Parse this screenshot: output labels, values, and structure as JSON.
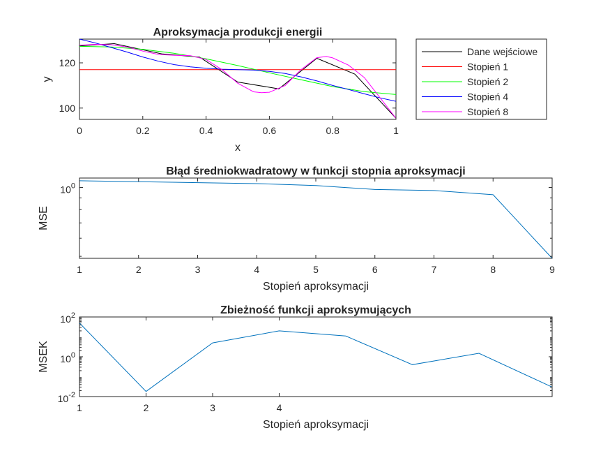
{
  "chart_data": [
    {
      "type": "line",
      "title": "Aproksymacja produkcji energii",
      "xlabel": "x",
      "ylabel": "y",
      "xlim": [
        0,
        1
      ],
      "ylim": [
        95,
        130.5
      ],
      "xticks": [
        0,
        0.2,
        0.4,
        0.6,
        0.8,
        1
      ],
      "xtick_labels": [
        "0",
        "0.2",
        "0.4",
        "0.6",
        "0.8",
        "1"
      ],
      "yticks": [
        100,
        120
      ],
      "ytick_labels": [
        "100",
        "120"
      ],
      "legend_position": "outside-right",
      "series": [
        {
          "name": "Dane wejściowe",
          "color": "#000000",
          "x": [
            0,
            0.11,
            0.26,
            0.38,
            0.5,
            0.63,
            0.75,
            0.87,
            1.0
          ],
          "y": [
            127.5,
            128.5,
            124.0,
            122.5,
            111.5,
            108.5,
            122.0,
            115.0,
            95.5
          ]
        },
        {
          "name": "Stopień 1",
          "color": "#ff0000",
          "x": [
            0,
            1
          ],
          "y": [
            117.0,
            117.0
          ]
        },
        {
          "name": "Stopień 2",
          "color": "#00ff00",
          "x": [
            0,
            0.1,
            0.2,
            0.3,
            0.4,
            0.5,
            0.6,
            0.7,
            0.8,
            0.9,
            1.0
          ],
          "y": [
            127.3,
            127.0,
            126.0,
            124.2,
            121.8,
            118.8,
            115.6,
            112.5,
            109.5,
            107.3,
            106.0
          ]
        },
        {
          "name": "Stopień 4",
          "color": "#0000ff",
          "x": [
            0,
            0.05,
            0.1,
            0.15,
            0.2,
            0.25,
            0.3,
            0.35,
            0.4,
            0.45,
            0.5,
            0.55,
            0.6,
            0.65,
            0.7,
            0.75,
            0.8,
            0.85,
            0.9,
            0.95,
            1.0
          ],
          "y": [
            130.5,
            128.8,
            126.8,
            124.8,
            122.6,
            120.7,
            119.2,
            118.2,
            117.6,
            117.2,
            117.0,
            116.8,
            116.2,
            115.3,
            113.8,
            112.0,
            110.0,
            108.2,
            106.3,
            104.5,
            103.0
          ]
        },
        {
          "name": "Stopień 8",
          "color": "#ff00ff",
          "x": [
            0,
            0.05,
            0.1,
            0.15,
            0.2,
            0.25,
            0.3,
            0.35,
            0.4,
            0.45,
            0.5,
            0.55,
            0.575,
            0.6,
            0.65,
            0.7,
            0.75,
            0.78,
            0.8,
            0.85,
            0.9,
            0.95,
            1.0
          ],
          "y": [
            127.8,
            128.2,
            128.0,
            127.0,
            125.2,
            123.7,
            123.3,
            123.2,
            121.5,
            117.0,
            111.0,
            107.2,
            106.8,
            107.0,
            110.0,
            117.0,
            122.3,
            122.8,
            122.2,
            119.0,
            113.5,
            104.5,
            95.5
          ]
        }
      ]
    },
    {
      "type": "line",
      "title": "Błąd średniokwadratowy w funkcji stopnia aproksymacji",
      "xlabel": "Stopień aproksymacji",
      "ylabel": "MSE",
      "xlim": [
        1,
        9
      ],
      "xticks": [
        1,
        2,
        3,
        4,
        5,
        6,
        7,
        8,
        9
      ],
      "xtick_labels": [
        "1",
        "2",
        "3",
        "4",
        "5",
        "6",
        "7",
        "8",
        "9"
      ],
      "yscale": "log",
      "ylim": [
        0.49,
        1.1
      ],
      "yticks": [
        1
      ],
      "ytick_labels": [
        "10",
        "0"
      ],
      "series": [
        {
          "color": "#0072bd",
          "x": [
            1,
            2,
            3,
            4,
            5,
            6,
            7,
            8,
            9
          ],
          "y": [
            1.07,
            1.06,
            1.05,
            1.04,
            1.02,
            0.98,
            0.97,
            0.93,
            0.49
          ]
        }
      ]
    },
    {
      "type": "line",
      "title": "Zbieżność funkcji aproksymujących",
      "xlabel": "Stopień aproksymacji",
      "ylabel": "MSEK",
      "xlim": [
        1,
        8.1
      ],
      "xticks": [
        1,
        2,
        3,
        4
      ],
      "xtick_labels": [
        "1",
        "2",
        "3",
        "4"
      ],
      "yscale": "log",
      "ylim": [
        0.01,
        100
      ],
      "yticks": [
        0.01,
        1,
        100
      ],
      "ytick_labels": [
        [
          "10",
          "-2"
        ],
        [
          "10",
          "0"
        ],
        [
          "10",
          "2"
        ]
      ],
      "series": [
        {
          "color": "#0072bd",
          "x": [
            1,
            2,
            3,
            4,
            5,
            6,
            7,
            8.1
          ],
          "y": [
            50,
            0.018,
            5,
            20,
            11,
            0.4,
            1.5,
            0.03
          ]
        }
      ]
    }
  ]
}
